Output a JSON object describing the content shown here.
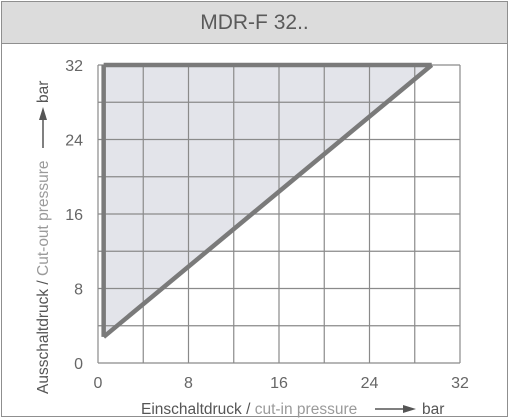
{
  "chart_data": {
    "type": "area",
    "title": "MDR-F 32..",
    "xlabel": {
      "de": "Einschaltdruck",
      "sep": " / ",
      "en": "cut-in pressure",
      "unit": "bar"
    },
    "ylabel": {
      "de": "Ausschaltdruck",
      "sep": " / ",
      "en": "Cut-out pressure",
      "unit": "bar"
    },
    "xlim": [
      0,
      32
    ],
    "ylim": [
      0,
      32
    ],
    "x_ticks": [
      "0",
      "8",
      "16",
      "24",
      "32"
    ],
    "y_ticks": [
      "0",
      "8",
      "16",
      "24",
      "32"
    ],
    "grid": true,
    "grid_step": 4,
    "region": {
      "fill": "#e3e4ea",
      "boundary": [
        {
          "x": 0.5,
          "y": 32
        },
        {
          "x": 29.5,
          "y": 32
        },
        {
          "x": 0.5,
          "y": 2.8
        }
      ]
    },
    "series": [
      {
        "points": [
          {
            "x": 0.5,
            "y": 2.8
          },
          {
            "x": 0.5,
            "y": 32
          }
        ]
      },
      {
        "points": [
          {
            "x": 0.5,
            "y": 32
          },
          {
            "x": 29.5,
            "y": 32
          }
        ]
      },
      {
        "points": [
          {
            "x": 0.5,
            "y": 2.8
          },
          {
            "x": 29.5,
            "y": 32
          }
        ]
      }
    ],
    "colors": {
      "line": "#7a7a7a",
      "grid": "#8a8a8a"
    }
  }
}
